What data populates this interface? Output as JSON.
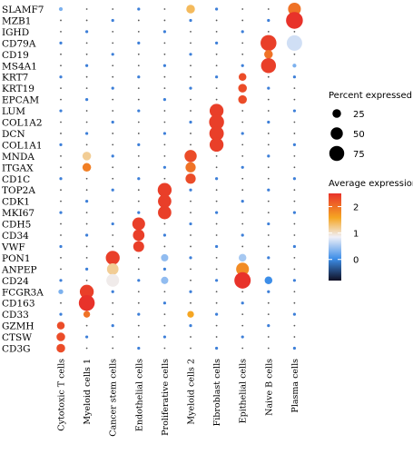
{
  "chart_data": {
    "type": "dotplot",
    "genes": [
      "SLAMF7",
      "MZB1",
      "IGHD",
      "CD79A",
      "CD19",
      "MS4A1",
      "KRT7",
      "KRT19",
      "EPCAM",
      "LUM",
      "COL1A2",
      "DCN",
      "COL1A1",
      "MNDA",
      "ITGAX",
      "CD1C",
      "TOP2A",
      "CDK1",
      "MKI67",
      "CDH5",
      "CD34",
      "VWF",
      "PON1",
      "ANPEP",
      "CD24",
      "FCGR3A",
      "CD163",
      "CD33",
      "GZMH",
      "CTSW",
      "CD3G"
    ],
    "cell_types": [
      "Cytotoxic T cells",
      "Myeloid cells 1",
      "Cancer stem cells",
      "Endothelial cells",
      "Proliferative cells",
      "Myeloid cells 2",
      "Fibroblast cells",
      "Epithelial cells",
      "Naive B cells",
      "Plasma cells"
    ],
    "highlights": [
      {
        "gene": "SLAMF7",
        "cell": "Plasma cells",
        "pct": 55,
        "avg": 2.0
      },
      {
        "gene": "MZB1",
        "cell": "Plasma cells",
        "pct": 95,
        "avg": 2.5
      },
      {
        "gene": "CD79A",
        "cell": "Naive B cells",
        "pct": 85,
        "avg": 2.4
      },
      {
        "gene": "CD79A",
        "cell": "Plasma cells",
        "pct": 80,
        "avg": 0.7
      },
      {
        "gene": "MS4A1",
        "cell": "Naive B cells",
        "pct": 75,
        "avg": 2.4
      },
      {
        "gene": "CD19",
        "cell": "Naive B cells",
        "pct": 25,
        "avg": 2.0
      },
      {
        "gene": "KRT7",
        "cell": "Epithelial cells",
        "pct": 20,
        "avg": 2.3
      },
      {
        "gene": "KRT19",
        "cell": "Epithelial cells",
        "pct": 25,
        "avg": 2.3
      },
      {
        "gene": "EPCAM",
        "cell": "Epithelial cells",
        "pct": 25,
        "avg": 2.3
      },
      {
        "gene": "LUM",
        "cell": "Fibroblast cells",
        "pct": 65,
        "avg": 2.4
      },
      {
        "gene": "COL1A2",
        "cell": "Fibroblast cells",
        "pct": 75,
        "avg": 2.4
      },
      {
        "gene": "DCN",
        "cell": "Fibroblast cells",
        "pct": 70,
        "avg": 2.4
      },
      {
        "gene": "COL1A1",
        "cell": "Fibroblast cells",
        "pct": 65,
        "avg": 2.4
      },
      {
        "gene": "MNDA",
        "cell": "Myeloid cells 2",
        "pct": 50,
        "avg": 2.3
      },
      {
        "gene": "ITGAX",
        "cell": "Myeloid cells 2",
        "pct": 35,
        "avg": 2.0
      },
      {
        "gene": "CD1C",
        "cell": "Myeloid cells 2",
        "pct": 35,
        "avg": 2.3
      },
      {
        "gene": "MNDA",
        "cell": "Myeloid cells 1",
        "pct": 25,
        "avg": 1.2
      },
      {
        "gene": "ITGAX",
        "cell": "Myeloid cells 1",
        "pct": 25,
        "avg": 1.9
      },
      {
        "gene": "SLAMF7",
        "cell": "Myeloid cells 2",
        "pct": 25,
        "avg": 1.4
      },
      {
        "gene": "TOP2A",
        "cell": "Proliferative cells",
        "pct": 65,
        "avg": 2.4
      },
      {
        "gene": "CDK1",
        "cell": "Proliferative cells",
        "pct": 60,
        "avg": 2.4
      },
      {
        "gene": "MKI67",
        "cell": "Proliferative cells",
        "pct": 60,
        "avg": 2.4
      },
      {
        "gene": "CDH5",
        "cell": "Endothelial cells",
        "pct": 55,
        "avg": 2.4
      },
      {
        "gene": "CD34",
        "cell": "Endothelial cells",
        "pct": 45,
        "avg": 2.4
      },
      {
        "gene": "VWF",
        "cell": "Endothelial cells",
        "pct": 40,
        "avg": 2.4
      },
      {
        "gene": "PON1",
        "cell": "Cancer stem cells",
        "pct": 65,
        "avg": 2.4
      },
      {
        "gene": "ANPEP",
        "cell": "Cancer stem cells",
        "pct": 45,
        "avg": 1.2
      },
      {
        "gene": "CD24",
        "cell": "Cancer stem cells",
        "pct": 55,
        "avg": 0.9
      },
      {
        "gene": "PON1",
        "cell": "Epithelial cells",
        "pct": 20,
        "avg": 0.5
      },
      {
        "gene": "ANPEP",
        "cell": "Epithelial cells",
        "pct": 55,
        "avg": 1.8
      },
      {
        "gene": "CD24",
        "cell": "Epithelial cells",
        "pct": 90,
        "avg": 2.5
      },
      {
        "gene": "CD24",
        "cell": "Naive B cells",
        "pct": 20,
        "avg": 0.0
      },
      {
        "gene": "PON1",
        "cell": "Proliferative cells",
        "pct": 18,
        "avg": 0.4
      },
      {
        "gene": "CD24",
        "cell": "Proliferative cells",
        "pct": 18,
        "avg": 0.4
      },
      {
        "gene": "FCGR3A",
        "cell": "Myeloid cells 1",
        "pct": 65,
        "avg": 2.4
      },
      {
        "gene": "CD163",
        "cell": "Myeloid cells 1",
        "pct": 85,
        "avg": 2.5
      },
      {
        "gene": "CD33",
        "cell": "Myeloid cells 1",
        "pct": 15,
        "avg": 2.0
      },
      {
        "gene": "CD33",
        "cell": "Myeloid cells 2",
        "pct": 15,
        "avg": 1.6
      },
      {
        "gene": "GZMH",
        "cell": "Cytotoxic T cells",
        "pct": 20,
        "avg": 2.3
      },
      {
        "gene": "CTSW",
        "cell": "Cytotoxic T cells",
        "pct": 25,
        "avg": 2.3
      },
      {
        "gene": "CD3G",
        "cell": "Cytotoxic T cells",
        "pct": 25,
        "avg": 2.3
      },
      {
        "gene": "MS4A1",
        "cell": "Plasma cells",
        "pct": 5,
        "avg": 0.3
      },
      {
        "gene": "SLAMF7",
        "cell": "Cytotoxic T cells",
        "pct": 5,
        "avg": 0.3
      },
      {
        "gene": "FCGR3A",
        "cell": "Cytotoxic T cells",
        "pct": 8,
        "avg": 0.3
      }
    ],
    "default_point": {
      "pct": 4,
      "avg": 0.0
    },
    "legend_size": {
      "title": "Percent expressed",
      "values": [
        25,
        50,
        75
      ]
    },
    "legend_color": {
      "title": "Average expression",
      "ticks": [
        2,
        1,
        0
      ],
      "range": [
        -0.8,
        2.5
      ]
    },
    "colors": {
      "low": "#1a1a2e",
      "mid_low": "#3d8ee8",
      "mid": "#f0f0f8",
      "mid_high": "#f5a623",
      "high": "#e8322a"
    }
  },
  "labels": {
    "size_legend_title": "Percent expressed",
    "color_legend_title": "Average expression"
  }
}
